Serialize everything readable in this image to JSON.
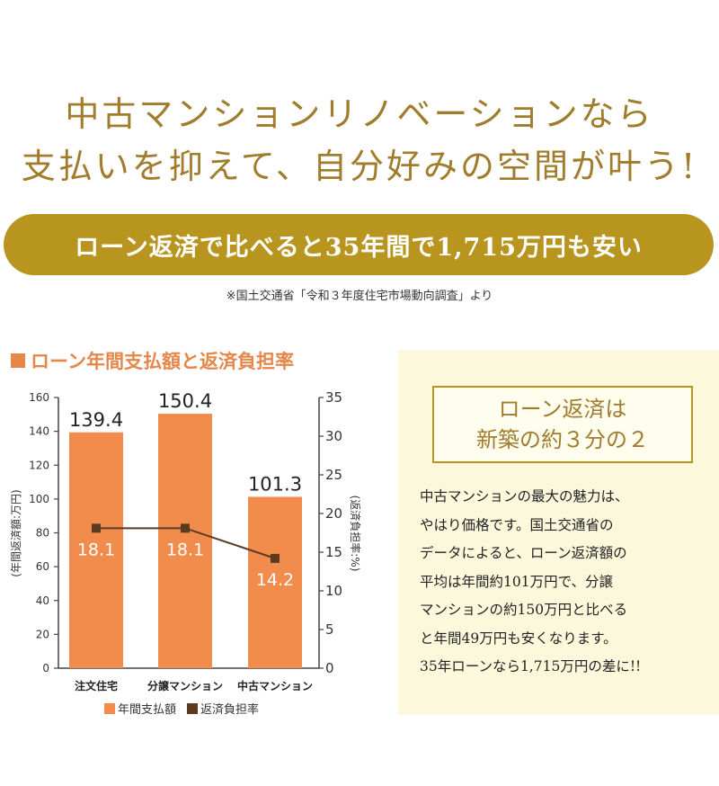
{
  "headline": {
    "line1": "中古マンションリノベーションなら",
    "line2": "支払いを抑えて、自分好みの空間が叶う!"
  },
  "banner": {
    "text": "ローン返済で比べると35年間で1,715万円も安い"
  },
  "source_note": "※国土交通省「令和３年度住宅市場動向調査」より",
  "chart_section": {
    "title": "ローン年間支払額と返済負担率"
  },
  "chart_data": {
    "type": "bar",
    "categories": [
      "注文住宅",
      "分譲マンション",
      "中古マンション"
    ],
    "series": [
      {
        "name": "年間支払額",
        "type": "bar",
        "axis": "left",
        "values": [
          139.4,
          150.4,
          101.3
        ],
        "color": "#f28c4c"
      },
      {
        "name": "返済負担率",
        "type": "line",
        "axis": "right",
        "values": [
          18.1,
          18.1,
          14.2
        ],
        "color": "#5b3a20"
      }
    ],
    "ylabel": "(年間返済額:万円)",
    "y2label": "(返済負担率:%)",
    "ylim": [
      0,
      160
    ],
    "y2lim": [
      0,
      35
    ],
    "yticks": [
      0,
      20,
      40,
      60,
      80,
      100,
      120,
      140,
      160
    ],
    "y2ticks": [
      0,
      5,
      10,
      15,
      20,
      25,
      30,
      35
    ],
    "grid": false,
    "legend": "bottom"
  },
  "panel": {
    "box_line1": "ローン返済は",
    "box_line2": "新築の約３分の２",
    "body_lines": [
      "中古マンションの最大の魅力は、",
      "やはり価格です。国土交通省の",
      "データによると、ローン返済額の",
      "平均は年間約101万円で、分譲",
      "マンションの約150万円と比べる",
      "と年間49万円も安くなります。",
      "35年ローンなら1,715万円の差に!!"
    ]
  }
}
